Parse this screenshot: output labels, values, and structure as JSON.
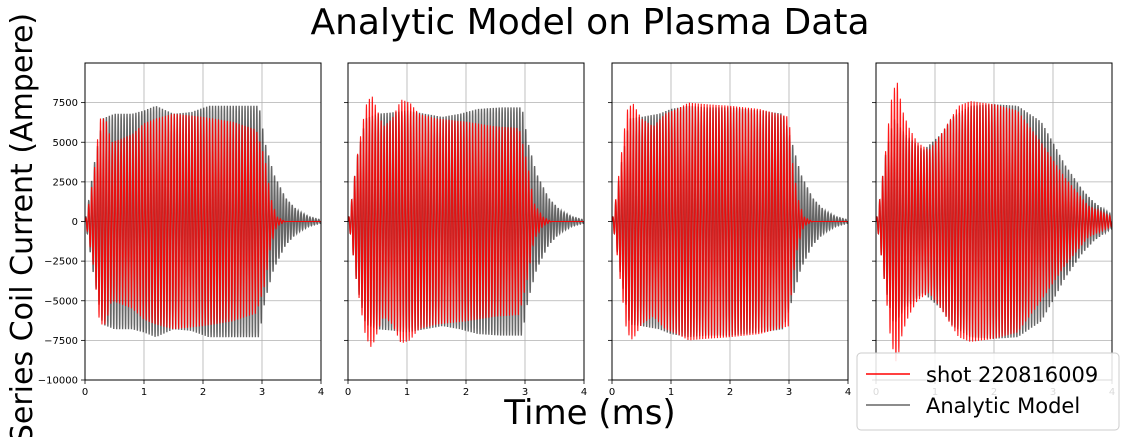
{
  "chart_data": {
    "type": "line",
    "title": "Analytic Model on Plasma Data",
    "xlabel": "Time (ms)",
    "ylabel": "Series Coil Current (Ampere)",
    "xlim": [
      0,
      4
    ],
    "ylim": [
      -10000,
      10000
    ],
    "x_ticks": [
      0,
      1,
      2,
      3,
      4
    ],
    "y_ticks": [
      -10000,
      -7500,
      -5000,
      -2500,
      0,
      2500,
      5000,
      7500
    ],
    "y_tick_labels": [
      "−10000",
      "−7500",
      "−5000",
      "−2500",
      "0",
      "2500",
      "5000",
      "7500"
    ],
    "x_tick_labels": [
      "0",
      "1",
      "2",
      "3",
      "4"
    ],
    "grid": true,
    "legend_placement": "lower-right",
    "oscillation_period_ms": 0.05,
    "series_styles": {
      "shot": {
        "name": "shot 220816009",
        "color": "#ff0000",
        "alpha": 0.9
      },
      "model": {
        "name": "Analytic Model",
        "color": "#000000",
        "alpha": 0.6
      }
    },
    "panels": [
      {
        "shot_envelope": [
          [
            0,
            0
          ],
          [
            0.05,
            800
          ],
          [
            0.15,
            3000
          ],
          [
            0.25,
            6500
          ],
          [
            0.35,
            6500
          ],
          [
            0.45,
            5000
          ],
          [
            0.6,
            5200
          ],
          [
            0.8,
            5500
          ],
          [
            1.0,
            6200
          ],
          [
            1.2,
            6500
          ],
          [
            1.5,
            6800
          ],
          [
            2.0,
            6600
          ],
          [
            2.5,
            6300
          ],
          [
            2.9,
            5800
          ],
          [
            3.05,
            4000
          ],
          [
            3.15,
            1500
          ],
          [
            3.25,
            300
          ],
          [
            3.4,
            0
          ],
          [
            4,
            0
          ]
        ],
        "model_envelope": [
          [
            0,
            0
          ],
          [
            0.05,
            1000
          ],
          [
            0.15,
            3500
          ],
          [
            0.3,
            6500
          ],
          [
            0.5,
            6800
          ],
          [
            0.8,
            6800
          ],
          [
            1.0,
            7000
          ],
          [
            1.2,
            7300
          ],
          [
            1.5,
            6800
          ],
          [
            1.8,
            6900
          ],
          [
            2.1,
            7300
          ],
          [
            2.5,
            7300
          ],
          [
            2.95,
            7300
          ],
          [
            3.05,
            5000
          ],
          [
            3.2,
            3000
          ],
          [
            3.4,
            1500
          ],
          [
            3.6,
            700
          ],
          [
            3.8,
            300
          ],
          [
            4,
            100
          ]
        ]
      },
      {
        "shot_envelope": [
          [
            0,
            0
          ],
          [
            0.05,
            1000
          ],
          [
            0.15,
            4000
          ],
          [
            0.3,
            7300
          ],
          [
            0.4,
            8000
          ],
          [
            0.5,
            7000
          ],
          [
            0.6,
            6000
          ],
          [
            0.75,
            6500
          ],
          [
            0.9,
            7700
          ],
          [
            1.05,
            7500
          ],
          [
            1.2,
            6800
          ],
          [
            1.5,
            6500
          ],
          [
            2.0,
            6300
          ],
          [
            2.5,
            6000
          ],
          [
            2.9,
            5900
          ],
          [
            3.05,
            3500
          ],
          [
            3.15,
            1200
          ],
          [
            3.3,
            300
          ],
          [
            3.45,
            0
          ],
          [
            4,
            0
          ]
        ],
        "model_envelope": [
          [
            0,
            0
          ],
          [
            0.05,
            1000
          ],
          [
            0.15,
            4000
          ],
          [
            0.3,
            6500
          ],
          [
            0.5,
            6800
          ],
          [
            0.8,
            6900
          ],
          [
            1.0,
            7000
          ],
          [
            1.3,
            6800
          ],
          [
            1.6,
            6600
          ],
          [
            1.9,
            6800
          ],
          [
            2.2,
            7100
          ],
          [
            2.6,
            7200
          ],
          [
            2.95,
            7200
          ],
          [
            3.05,
            5000
          ],
          [
            3.2,
            3000
          ],
          [
            3.4,
            1500
          ],
          [
            3.6,
            700
          ],
          [
            3.8,
            300
          ],
          [
            4,
            100
          ]
        ]
      },
      {
        "shot_envelope": [
          [
            0,
            0
          ],
          [
            0.05,
            1000
          ],
          [
            0.15,
            4000
          ],
          [
            0.25,
            7000
          ],
          [
            0.35,
            7500
          ],
          [
            0.5,
            6500
          ],
          [
            0.7,
            6000
          ],
          [
            0.9,
            6800
          ],
          [
            1.1,
            7100
          ],
          [
            1.3,
            7500
          ],
          [
            1.6,
            7400
          ],
          [
            2.0,
            7300
          ],
          [
            2.5,
            7100
          ],
          [
            3.0,
            6600
          ],
          [
            3.05,
            4000
          ],
          [
            3.15,
            1500
          ],
          [
            3.25,
            300
          ],
          [
            3.4,
            0
          ],
          [
            4,
            0
          ]
        ],
        "model_envelope": [
          [
            0,
            0
          ],
          [
            0.05,
            1000
          ],
          [
            0.15,
            3500
          ],
          [
            0.3,
            6500
          ],
          [
            0.5,
            6600
          ],
          [
            0.8,
            6800
          ],
          [
            1.0,
            7100
          ],
          [
            1.3,
            7300
          ],
          [
            1.6,
            7200
          ],
          [
            2.0,
            7200
          ],
          [
            2.5,
            7000
          ],
          [
            2.9,
            6800
          ],
          [
            3.05,
            5000
          ],
          [
            3.2,
            3000
          ],
          [
            3.4,
            1500
          ],
          [
            3.6,
            700
          ],
          [
            3.8,
            300
          ],
          [
            4,
            100
          ]
        ]
      },
      {
        "shot_envelope": [
          [
            0,
            0
          ],
          [
            0.05,
            1000
          ],
          [
            0.15,
            4000
          ],
          [
            0.25,
            7500
          ],
          [
            0.35,
            9000
          ],
          [
            0.45,
            7000
          ],
          [
            0.55,
            6000
          ],
          [
            0.7,
            5000
          ],
          [
            0.9,
            4500
          ],
          [
            1.1,
            5500
          ],
          [
            1.4,
            7300
          ],
          [
            1.6,
            7600
          ],
          [
            2.0,
            7400
          ],
          [
            2.4,
            7000
          ],
          [
            2.8,
            5000
          ],
          [
            3.2,
            2800
          ],
          [
            3.6,
            1000
          ],
          [
            4,
            300
          ]
        ],
        "model_envelope": [
          [
            0,
            0
          ],
          [
            0.05,
            1000
          ],
          [
            0.15,
            4000
          ],
          [
            0.3,
            6500
          ],
          [
            0.5,
            5500
          ],
          [
            0.8,
            4500
          ],
          [
            1.1,
            5500
          ],
          [
            1.3,
            6600
          ],
          [
            1.6,
            7300
          ],
          [
            2.0,
            7400
          ],
          [
            2.4,
            7300
          ],
          [
            2.8,
            6300
          ],
          [
            3.0,
            5000
          ],
          [
            3.2,
            3600
          ],
          [
            3.5,
            2000
          ],
          [
            3.7,
            1200
          ],
          [
            4,
            400
          ]
        ]
      }
    ]
  }
}
